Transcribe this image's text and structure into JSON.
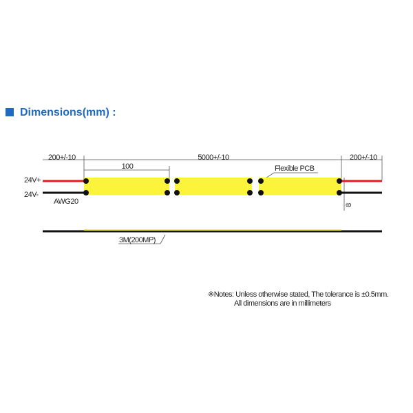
{
  "heading": "Dimensions(mm) :",
  "drawing": {
    "left_lead": "200+/-10",
    "strip_length": "5000+/-10",
    "right_lead": "200+/-10",
    "cut_unit": "100",
    "pcb_label": "Flexible PCB",
    "positive": "24V+",
    "negative": "24V-",
    "wire_gauge": "AWG20",
    "width": "8",
    "adhesive": "3M(200MP)"
  },
  "notes": [
    "※Notes: Unless otherwise stated, The tolerance is ±0.5mm.",
    "All dimensions are in millimeters"
  ]
}
